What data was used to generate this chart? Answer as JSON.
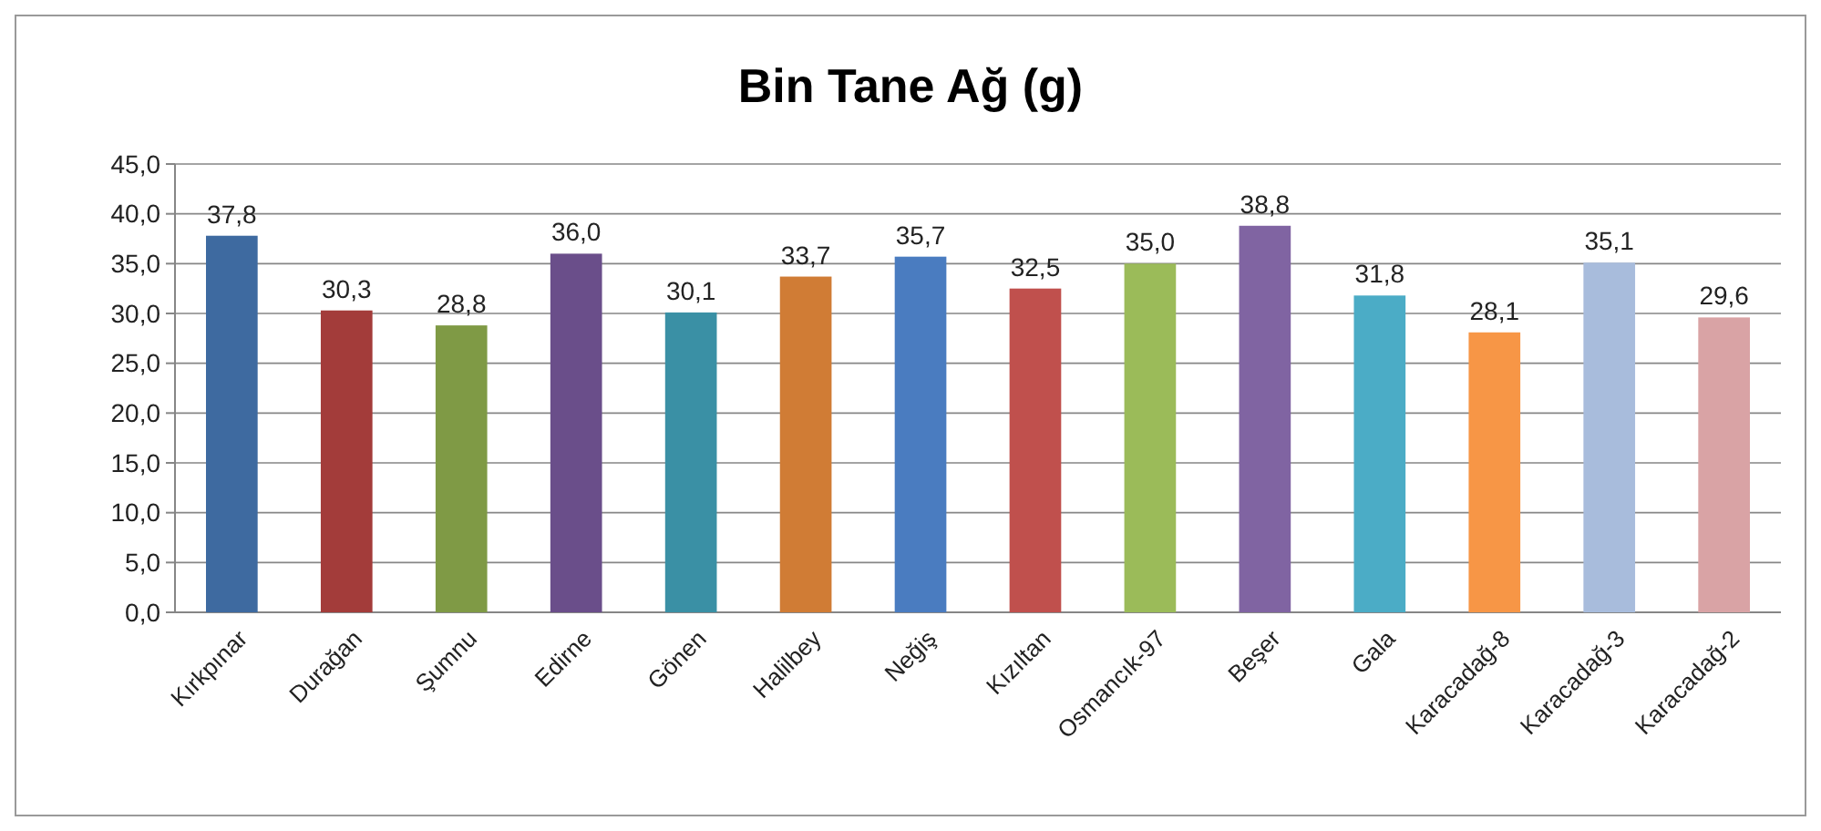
{
  "chart_data": {
    "type": "bar",
    "title": "Bin Tane Ağ (g)",
    "categories": [
      "Kırkpınar",
      "Durağan",
      "Şumnu",
      "Edirne",
      "Gönen",
      "Halilbey",
      "Neğiş",
      "Kızıltan",
      "Osmancık-97",
      "Beşer",
      "Gala",
      "Karacadağ-8",
      "Karacadağ-3",
      "Karacadağ-2"
    ],
    "values": [
      37.8,
      30.3,
      28.8,
      36.0,
      30.1,
      33.7,
      35.7,
      32.5,
      35.0,
      38.8,
      31.8,
      28.1,
      35.1,
      29.6
    ],
    "value_labels": [
      "37,8",
      "30,3",
      "28,8",
      "36,0",
      "30,1",
      "33,7",
      "35,7",
      "32,5",
      "35,0",
      "38,8",
      "31,8",
      "28,1",
      "35,1",
      "29,6"
    ],
    "colors": [
      "#3e6aa0",
      "#a33c3a",
      "#7f9a45",
      "#6a4e8a",
      "#3a90a5",
      "#d07c35",
      "#4a7cc0",
      "#c0504d",
      "#9bbb59",
      "#8064a2",
      "#4bacc6",
      "#f79646",
      "#a8bcdc",
      "#d9a3a5"
    ],
    "ylim": [
      0,
      45
    ],
    "yticks": [
      {
        "value": 0,
        "label": "0,0"
      },
      {
        "value": 5,
        "label": "5,0"
      },
      {
        "value": 10,
        "label": "10,0"
      },
      {
        "value": 15,
        "label": "15,0"
      },
      {
        "value": 20,
        "label": "20,0"
      },
      {
        "value": 25,
        "label": "25,0"
      },
      {
        "value": 30,
        "label": "30,0"
      },
      {
        "value": 35,
        "label": "35,0"
      },
      {
        "value": 40,
        "label": "40,0"
      },
      {
        "value": 45,
        "label": "45,0"
      }
    ],
    "grid": "y"
  }
}
